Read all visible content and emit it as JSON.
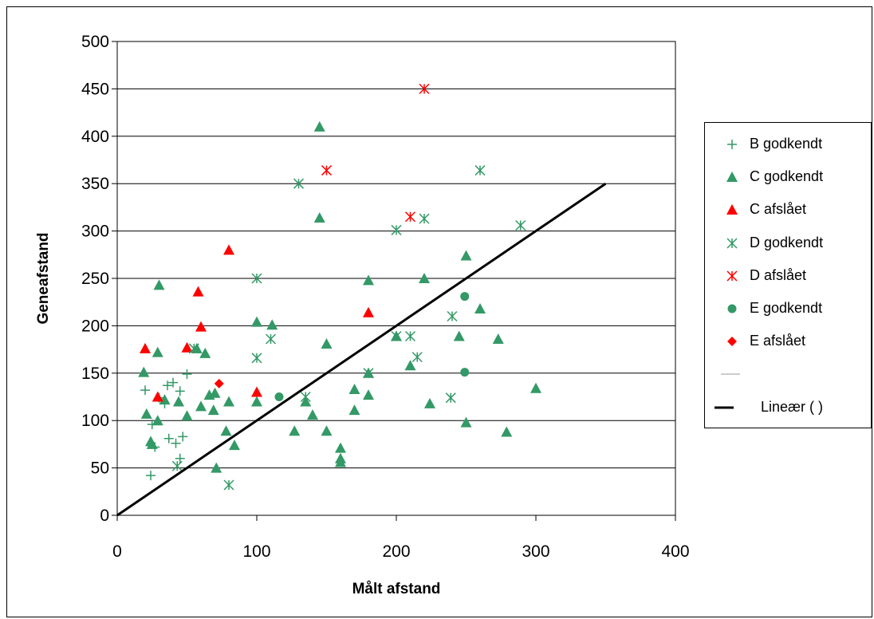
{
  "chart_data": {
    "type": "scatter",
    "title": "",
    "xlabel": "Målt afstand",
    "ylabel": "Geneafstand",
    "xlim": [
      0,
      400
    ],
    "ylim": [
      0,
      500
    ],
    "x_ticks": [
      "0",
      "100",
      "200",
      "300",
      "400"
    ],
    "y_ticks": [
      "0",
      "50",
      "100",
      "150",
      "200",
      "250",
      "300",
      "350",
      "400",
      "450",
      "500"
    ],
    "grid": "horizontal",
    "legend_position": "right",
    "series": [
      {
        "name": "B godkendt",
        "marker": "plus",
        "color": "#339966",
        "points": [
          [
            20,
            132
          ],
          [
            24,
            42
          ],
          [
            25,
            96
          ],
          [
            27,
            72
          ],
          [
            30,
            124
          ],
          [
            34,
            118
          ],
          [
            36,
            137
          ],
          [
            37,
            81
          ],
          [
            40,
            140
          ],
          [
            42,
            76
          ],
          [
            45,
            131
          ],
          [
            45,
            60
          ],
          [
            47,
            83
          ],
          [
            50,
            149
          ]
        ]
      },
      {
        "name": "C godkendt",
        "marker": "triangle",
        "color": "#339966",
        "points": [
          [
            19,
            151
          ],
          [
            21,
            107
          ],
          [
            24,
            78
          ],
          [
            25,
            75
          ],
          [
            29,
            172
          ],
          [
            30,
            243
          ],
          [
            29,
            100
          ],
          [
            34,
            122
          ],
          [
            44,
            120
          ],
          [
            50,
            105
          ],
          [
            57,
            176
          ],
          [
            60,
            115
          ],
          [
            63,
            171
          ],
          [
            66,
            127
          ],
          [
            69,
            111
          ],
          [
            70,
            129
          ],
          [
            71,
            50
          ],
          [
            78,
            89
          ],
          [
            80,
            120
          ],
          [
            84,
            74
          ],
          [
            100,
            204
          ],
          [
            100,
            120
          ],
          [
            111,
            201
          ],
          [
            127,
            89
          ],
          [
            135,
            120
          ],
          [
            140,
            106
          ],
          [
            145,
            410
          ],
          [
            145,
            314
          ],
          [
            150,
            181
          ],
          [
            150,
            89
          ],
          [
            160,
            71
          ],
          [
            160,
            60
          ],
          [
            160,
            56
          ],
          [
            170,
            111
          ],
          [
            170,
            133
          ],
          [
            180,
            127
          ],
          [
            180,
            150
          ],
          [
            180,
            248
          ],
          [
            200,
            189
          ],
          [
            210,
            158
          ],
          [
            220,
            250
          ],
          [
            224,
            118
          ],
          [
            245,
            189
          ],
          [
            250,
            274
          ],
          [
            250,
            98
          ],
          [
            260,
            218
          ],
          [
            273,
            186
          ],
          [
            279,
            88
          ],
          [
            300,
            134
          ]
        ]
      },
      {
        "name": "C afslået",
        "marker": "triangle",
        "color": "#ff0000",
        "points": [
          [
            20,
            176
          ],
          [
            29,
            125
          ],
          [
            50,
            177
          ],
          [
            58,
            236
          ],
          [
            60,
            199
          ],
          [
            80,
            280
          ],
          [
            100,
            130
          ],
          [
            180,
            214
          ]
        ]
      },
      {
        "name": "D godkendt",
        "marker": "asterisk",
        "color": "#339966",
        "points": [
          [
            43,
            52
          ],
          [
            55,
            176
          ],
          [
            80,
            32
          ],
          [
            100,
            250
          ],
          [
            100,
            166
          ],
          [
            110,
            186
          ],
          [
            130,
            350
          ],
          [
            135,
            125
          ],
          [
            180,
            150
          ],
          [
            200,
            301
          ],
          [
            200,
            189
          ],
          [
            210,
            189
          ],
          [
            215,
            167
          ],
          [
            220,
            313
          ],
          [
            239,
            124
          ],
          [
            240,
            210
          ],
          [
            260,
            364
          ],
          [
            289,
            306
          ]
        ]
      },
      {
        "name": "D afslået",
        "marker": "asterisk",
        "color": "#ff0000",
        "points": [
          [
            150,
            364
          ],
          [
            210,
            315
          ],
          [
            220,
            450
          ]
        ]
      },
      {
        "name": "E godkendt",
        "marker": "circle",
        "color": "#339966",
        "points": [
          [
            116,
            125
          ],
          [
            249,
            231
          ],
          [
            249,
            151
          ]
        ]
      },
      {
        "name": "E afslået",
        "marker": "diamond",
        "color": "#ff0000",
        "points": [
          [
            73,
            139
          ]
        ]
      }
    ],
    "trendline": {
      "name": "Lineær ( )",
      "x": [
        0,
        350
      ],
      "y": [
        0,
        350
      ],
      "color": "#000000"
    },
    "legend_entries": [
      "B godkendt",
      "C godkendt",
      "C afslået",
      "D godkendt",
      "D afslået",
      "E godkendt",
      "E afslået",
      "",
      "Lineær ( )"
    ]
  }
}
